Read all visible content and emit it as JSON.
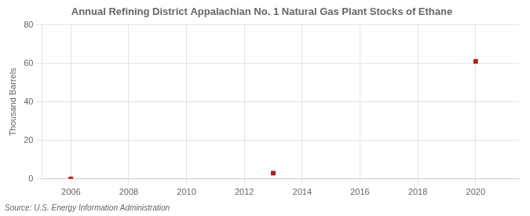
{
  "chart_data": {
    "type": "scatter",
    "title": "Annual Refining District Appalachian No. 1 Natural Gas Plant Stocks of Ethane",
    "ylabel": "Thousand Barrels",
    "source": "Source: U.S. Energy Information Administration",
    "x": [
      2006,
      2013,
      2020
    ],
    "values": [
      0,
      3,
      61
    ],
    "color": "#b22020",
    "marker": "square",
    "xlim": [
      2005.0,
      2021.5
    ],
    "ylim": [
      0,
      80
    ],
    "xticks": [
      2006,
      2008,
      2010,
      2012,
      2014,
      2016,
      2018,
      2020
    ],
    "yticks": [
      0,
      20,
      40,
      60,
      80
    ],
    "grid": true
  }
}
